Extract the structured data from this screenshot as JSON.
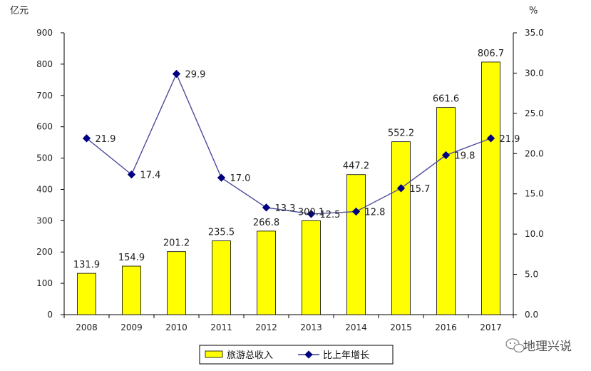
{
  "chart_data": {
    "type": "bar",
    "categories": [
      "2008",
      "2009",
      "2010",
      "2011",
      "2012",
      "2013",
      "2014",
      "2015",
      "2016",
      "2017"
    ],
    "left_axis_unit": "亿元",
    "right_axis_unit": "%",
    "left_ylim": [
      0,
      900
    ],
    "left_yticks": [
      "0",
      "100",
      "200",
      "300",
      "400",
      "500",
      "600",
      "700",
      "800",
      "900"
    ],
    "right_ylim": [
      0,
      35
    ],
    "right_yticks": [
      "0.0",
      "5.0",
      "10.0",
      "15.0",
      "20.0",
      "25.0",
      "30.0",
      "35.0"
    ],
    "series": [
      {
        "name": "旅游总收入",
        "type": "bar",
        "axis": "left",
        "color": "#ffff00",
        "values": [
          131.9,
          154.9,
          201.2,
          235.5,
          266.8,
          300.1,
          447.2,
          552.2,
          661.6,
          806.7
        ],
        "labels": [
          "131.9",
          "154.9",
          "201.2",
          "235.5",
          "266.8",
          "300.1",
          "447.2",
          "552.2",
          "661.6",
          "806.7"
        ]
      },
      {
        "name": "比上年增长",
        "type": "line",
        "axis": "right",
        "color": "#000080",
        "values": [
          21.9,
          17.4,
          29.9,
          17.0,
          13.3,
          12.5,
          12.8,
          15.7,
          19.8,
          21.9
        ],
        "labels": [
          "21.9",
          "17.4",
          "29.9",
          "17.0",
          "13.3",
          "12.5",
          "12.8",
          "15.7",
          "19.8",
          "21.9"
        ]
      }
    ],
    "grid": false,
    "legend_position": "bottom"
  },
  "watermark": {
    "text": "地理兴说"
  }
}
